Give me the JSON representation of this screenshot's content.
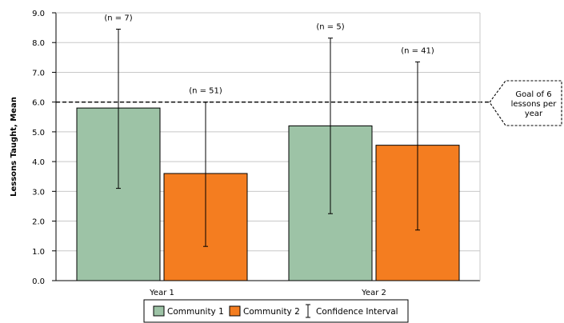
{
  "chart_data": {
    "type": "bar",
    "title": "",
    "xlabel": "",
    "ylabel": "Lessons Taught, Mean",
    "ylim": [
      0,
      9
    ],
    "yticks": [
      "0.0",
      "1.0",
      "2.0",
      "3.0",
      "4.0",
      "5.0",
      "6.0",
      "7.0",
      "8.0",
      "9.0"
    ],
    "grid": true,
    "categories": [
      "Year 1",
      "Year 2"
    ],
    "series": [
      {
        "name": "Community 1",
        "color": "#9dc3a6",
        "values": [
          5.8,
          5.2
        ],
        "ci_low": [
          3.1,
          2.25
        ],
        "ci_high": [
          8.45,
          8.15
        ],
        "n_labels": [
          "(n = 7)",
          "(n = 5)"
        ]
      },
      {
        "name": "Community 2",
        "color": "#f47d20",
        "values": [
          3.6,
          4.55
        ],
        "ci_low": [
          1.15,
          1.7
        ],
        "ci_high": [
          6.0,
          7.35
        ],
        "n_labels": [
          "(n = 51)",
          "(n = 41)"
        ]
      }
    ],
    "reference_line": {
      "value": 6.0,
      "style": "dashed",
      "label_lines": [
        "Goal of 6",
        "lessons per",
        "year"
      ]
    },
    "legend": {
      "placement": "bottom",
      "items": [
        "Community 1",
        "Community 2"
      ],
      "ci_label": "Confidence Interval"
    }
  }
}
